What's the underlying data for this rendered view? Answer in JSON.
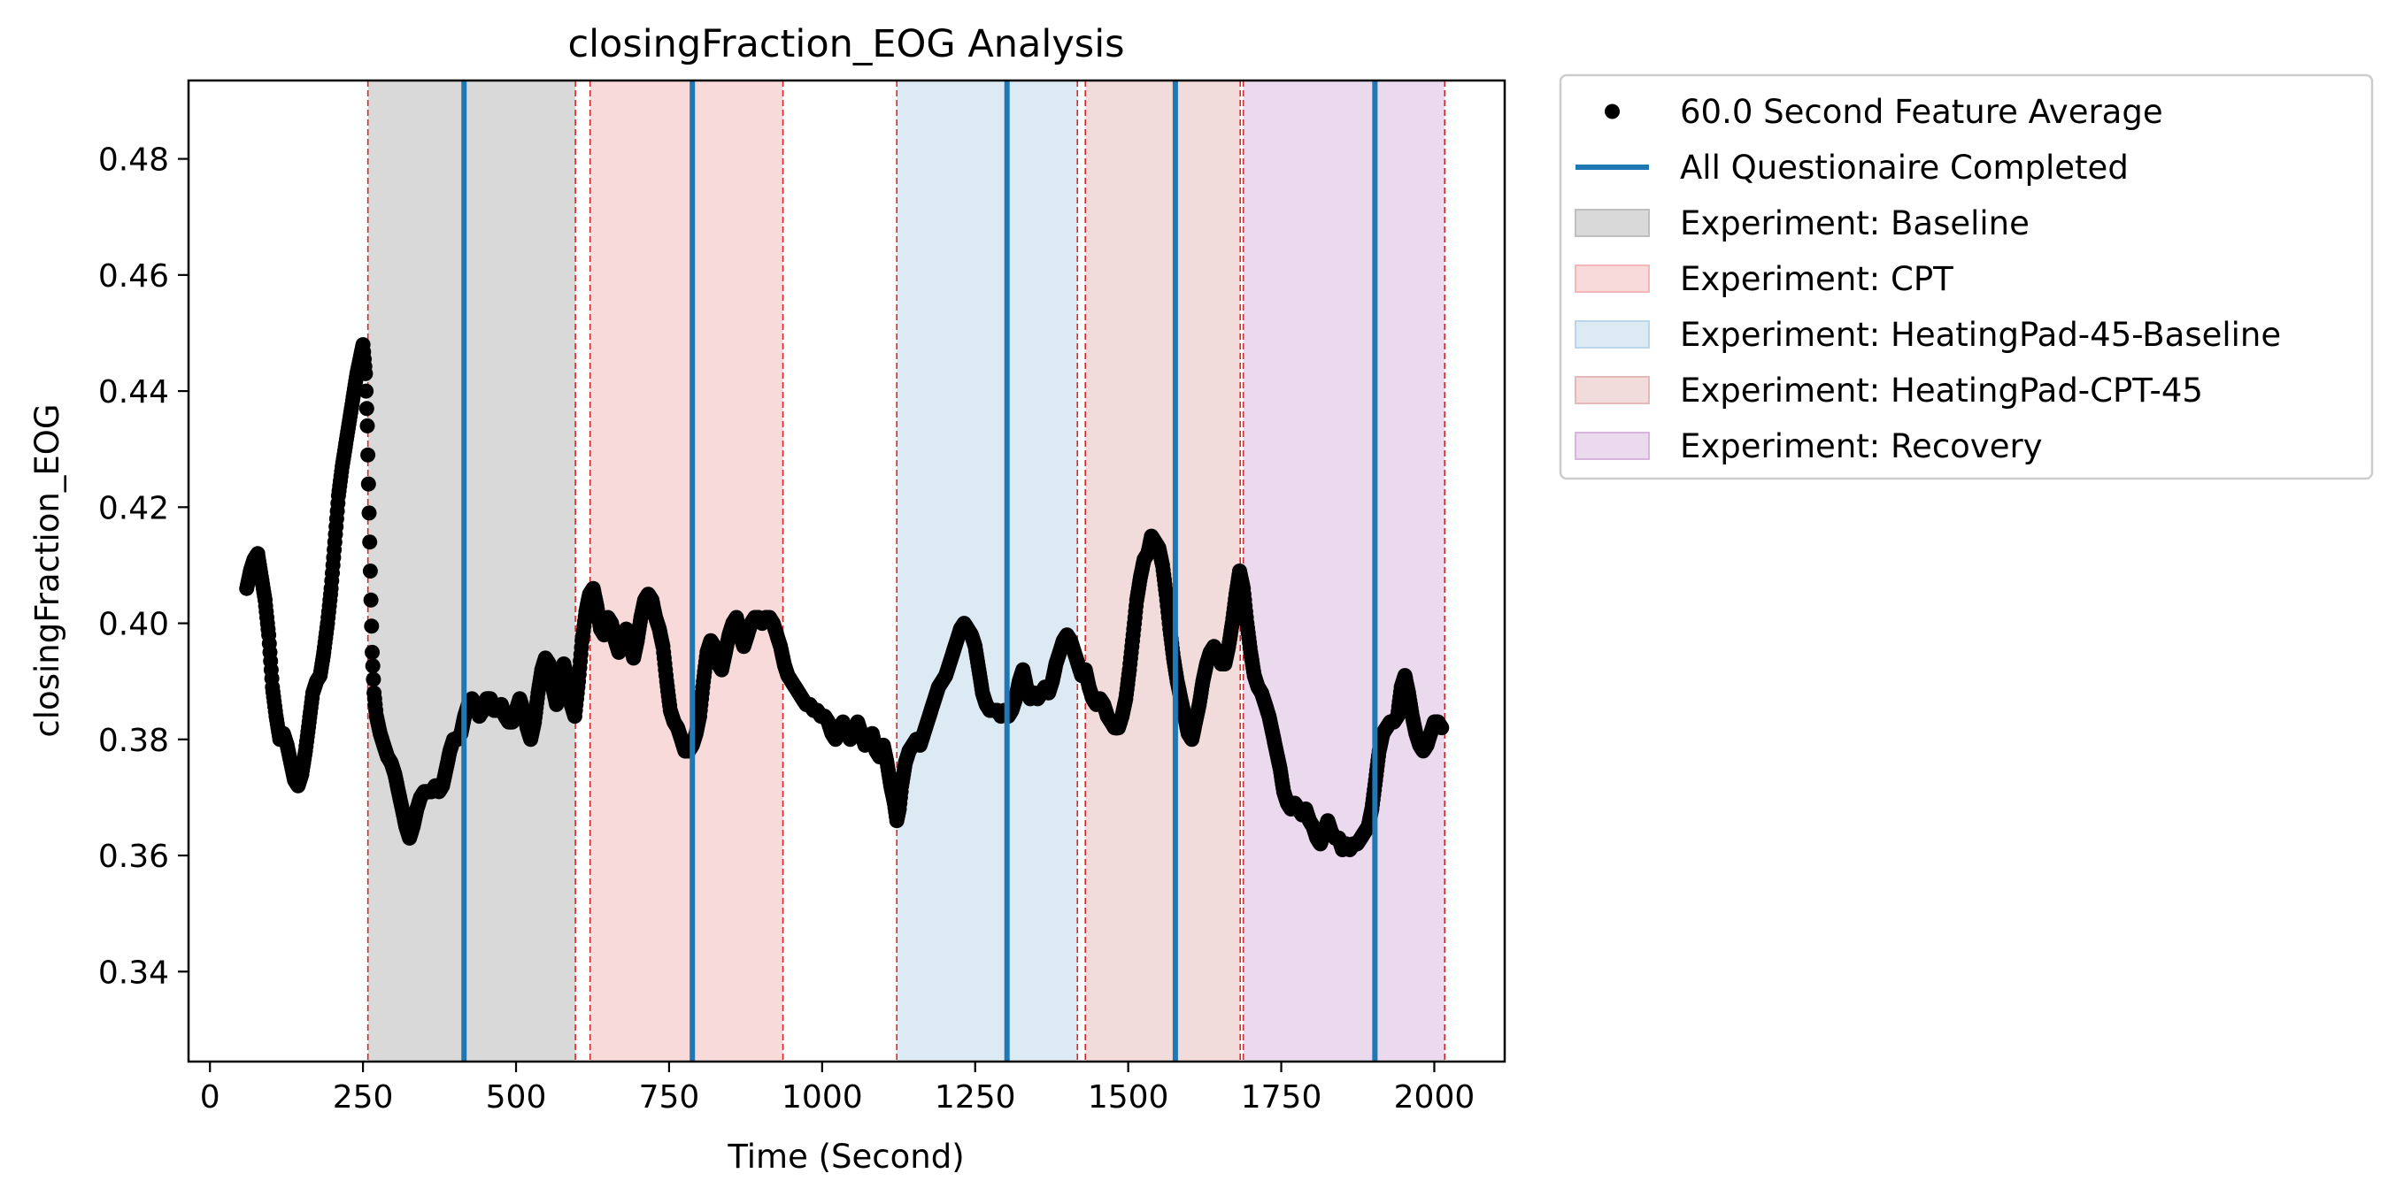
{
  "chart_data": {
    "type": "scatter",
    "title": "closingFraction_EOG Analysis",
    "xlabel": "Time (Second)",
    "ylabel": "closingFraction_EOG",
    "xlim": [
      -35,
      2115
    ],
    "ylim": [
      0.3245,
      0.4935
    ],
    "xticks": [
      0,
      250,
      500,
      750,
      1000,
      1250,
      1500,
      1750,
      2000
    ],
    "xtick_labels": [
      "0",
      "250",
      "500",
      "750",
      "1000",
      "1250",
      "1500",
      "1750",
      "2000"
    ],
    "yticks": [
      0.34,
      0.36,
      0.38,
      0.4,
      0.42,
      0.44,
      0.46,
      0.48
    ],
    "ytick_labels": [
      "0.34",
      "0.36",
      "0.38",
      "0.40",
      "0.42",
      "0.44",
      "0.46",
      "0.48"
    ],
    "grid": false,
    "legend_position": "outside-top-right",
    "series_name": "60.0 Second Feature Average",
    "series_color": "#000000",
    "series_keypoints": [
      [
        60,
        0.406
      ],
      [
        66,
        0.409
      ],
      [
        72,
        0.411
      ],
      [
        78,
        0.412
      ],
      [
        84,
        0.408
      ],
      [
        90,
        0.404
      ],
      [
        96,
        0.398
      ],
      [
        102,
        0.389
      ],
      [
        108,
        0.384
      ],
      [
        114,
        0.38
      ],
      [
        120,
        0.381
      ],
      [
        126,
        0.379
      ],
      [
        132,
        0.376
      ],
      [
        138,
        0.373
      ],
      [
        144,
        0.372
      ],
      [
        150,
        0.374
      ],
      [
        156,
        0.378
      ],
      [
        162,
        0.383
      ],
      [
        168,
        0.388
      ],
      [
        174,
        0.39
      ],
      [
        180,
        0.391
      ],
      [
        186,
        0.395
      ],
      [
        192,
        0.4
      ],
      [
        198,
        0.406
      ],
      [
        204,
        0.414
      ],
      [
        210,
        0.422
      ],
      [
        216,
        0.427
      ],
      [
        222,
        0.431
      ],
      [
        228,
        0.435
      ],
      [
        234,
        0.439
      ],
      [
        240,
        0.443
      ],
      [
        246,
        0.446
      ],
      [
        250,
        0.448
      ],
      [
        254,
        0.443
      ],
      [
        257,
        0.434
      ],
      [
        259,
        0.424
      ],
      [
        261,
        0.414
      ],
      [
        263,
        0.404
      ],
      [
        265,
        0.395
      ],
      [
        268,
        0.388
      ],
      [
        272,
        0.384
      ],
      [
        278,
        0.381
      ],
      [
        284,
        0.379
      ],
      [
        290,
        0.377
      ],
      [
        296,
        0.376
      ],
      [
        302,
        0.374
      ],
      [
        308,
        0.371
      ],
      [
        314,
        0.368
      ],
      [
        320,
        0.365
      ],
      [
        326,
        0.363
      ],
      [
        332,
        0.365
      ],
      [
        338,
        0.368
      ],
      [
        344,
        0.37
      ],
      [
        350,
        0.371
      ],
      [
        356,
        0.371
      ],
      [
        362,
        0.371
      ],
      [
        368,
        0.372
      ],
      [
        374,
        0.371
      ],
      [
        380,
        0.372
      ],
      [
        386,
        0.375
      ],
      [
        392,
        0.378
      ],
      [
        398,
        0.38
      ],
      [
        404,
        0.38
      ],
      [
        410,
        0.381
      ],
      [
        416,
        0.384
      ],
      [
        422,
        0.386
      ],
      [
        428,
        0.387
      ],
      [
        434,
        0.386
      ],
      [
        440,
        0.384
      ],
      [
        446,
        0.385
      ],
      [
        452,
        0.387
      ],
      [
        458,
        0.387
      ],
      [
        464,
        0.385
      ],
      [
        470,
        0.385
      ],
      [
        476,
        0.386
      ],
      [
        482,
        0.384
      ],
      [
        488,
        0.383
      ],
      [
        494,
        0.383
      ],
      [
        500,
        0.385
      ],
      [
        506,
        0.387
      ],
      [
        512,
        0.385
      ],
      [
        518,
        0.382
      ],
      [
        524,
        0.38
      ],
      [
        530,
        0.383
      ],
      [
        536,
        0.388
      ],
      [
        542,
        0.392
      ],
      [
        548,
        0.394
      ],
      [
        554,
        0.393
      ],
      [
        560,
        0.389
      ],
      [
        566,
        0.386
      ],
      [
        572,
        0.39
      ],
      [
        578,
        0.393
      ],
      [
        584,
        0.39
      ],
      [
        590,
        0.386
      ],
      [
        596,
        0.384
      ],
      [
        602,
        0.39
      ],
      [
        608,
        0.397
      ],
      [
        614,
        0.402
      ],
      [
        620,
        0.405
      ],
      [
        626,
        0.406
      ],
      [
        632,
        0.403
      ],
      [
        638,
        0.399
      ],
      [
        644,
        0.398
      ],
      [
        650,
        0.401
      ],
      [
        656,
        0.4
      ],
      [
        662,
        0.397
      ],
      [
        668,
        0.395
      ],
      [
        674,
        0.396
      ],
      [
        680,
        0.399
      ],
      [
        686,
        0.397
      ],
      [
        692,
        0.394
      ],
      [
        698,
        0.397
      ],
      [
        704,
        0.401
      ],
      [
        710,
        0.404
      ],
      [
        716,
        0.405
      ],
      [
        722,
        0.404
      ],
      [
        728,
        0.401
      ],
      [
        734,
        0.399
      ],
      [
        740,
        0.396
      ],
      [
        746,
        0.39
      ],
      [
        752,
        0.385
      ],
      [
        758,
        0.383
      ],
      [
        764,
        0.382
      ],
      [
        770,
        0.38
      ],
      [
        776,
        0.378
      ],
      [
        782,
        0.378
      ],
      [
        788,
        0.379
      ],
      [
        794,
        0.381
      ],
      [
        800,
        0.384
      ],
      [
        806,
        0.39
      ],
      [
        812,
        0.395
      ],
      [
        818,
        0.397
      ],
      [
        824,
        0.396
      ],
      [
        830,
        0.393
      ],
      [
        836,
        0.392
      ],
      [
        842,
        0.395
      ],
      [
        848,
        0.398
      ],
      [
        854,
        0.4
      ],
      [
        860,
        0.401
      ],
      [
        866,
        0.398
      ],
      [
        872,
        0.396
      ],
      [
        878,
        0.398
      ],
      [
        884,
        0.4
      ],
      [
        890,
        0.401
      ],
      [
        896,
        0.401
      ],
      [
        902,
        0.4
      ],
      [
        908,
        0.401
      ],
      [
        914,
        0.401
      ],
      [
        920,
        0.4
      ],
      [
        926,
        0.398
      ],
      [
        932,
        0.396
      ],
      [
        938,
        0.393
      ],
      [
        944,
        0.391
      ],
      [
        950,
        0.39
      ],
      [
        956,
        0.389
      ],
      [
        962,
        0.388
      ],
      [
        968,
        0.387
      ],
      [
        974,
        0.386
      ],
      [
        980,
        0.386
      ],
      [
        986,
        0.385
      ],
      [
        992,
        0.385
      ],
      [
        998,
        0.384
      ],
      [
        1004,
        0.384
      ],
      [
        1010,
        0.383
      ],
      [
        1016,
        0.381
      ],
      [
        1022,
        0.38
      ],
      [
        1028,
        0.382
      ],
      [
        1034,
        0.383
      ],
      [
        1040,
        0.381
      ],
      [
        1046,
        0.38
      ],
      [
        1052,
        0.381
      ],
      [
        1058,
        0.383
      ],
      [
        1064,
        0.381
      ],
      [
        1070,
        0.379
      ],
      [
        1076,
        0.38
      ],
      [
        1082,
        0.381
      ],
      [
        1088,
        0.378
      ],
      [
        1094,
        0.377
      ],
      [
        1100,
        0.379
      ],
      [
        1106,
        0.376
      ],
      [
        1112,
        0.372
      ],
      [
        1118,
        0.369
      ],
      [
        1122,
        0.366
      ],
      [
        1126,
        0.368
      ],
      [
        1130,
        0.372
      ],
      [
        1136,
        0.376
      ],
      [
        1142,
        0.378
      ],
      [
        1148,
        0.379
      ],
      [
        1154,
        0.38
      ],
      [
        1160,
        0.379
      ],
      [
        1166,
        0.381
      ],
      [
        1172,
        0.383
      ],
      [
        1178,
        0.385
      ],
      [
        1184,
        0.387
      ],
      [
        1190,
        0.389
      ],
      [
        1196,
        0.39
      ],
      [
        1202,
        0.391
      ],
      [
        1208,
        0.393
      ],
      [
        1214,
        0.395
      ],
      [
        1220,
        0.397
      ],
      [
        1226,
        0.399
      ],
      [
        1232,
        0.4
      ],
      [
        1238,
        0.399
      ],
      [
        1244,
        0.398
      ],
      [
        1250,
        0.396
      ],
      [
        1256,
        0.392
      ],
      [
        1262,
        0.388
      ],
      [
        1268,
        0.386
      ],
      [
        1274,
        0.385
      ],
      [
        1280,
        0.385
      ],
      [
        1286,
        0.385
      ],
      [
        1292,
        0.384
      ],
      [
        1298,
        0.385
      ],
      [
        1304,
        0.384
      ],
      [
        1310,
        0.385
      ],
      [
        1316,
        0.387
      ],
      [
        1322,
        0.39
      ],
      [
        1328,
        0.392
      ],
      [
        1334,
        0.389
      ],
      [
        1340,
        0.387
      ],
      [
        1346,
        0.388
      ],
      [
        1352,
        0.387
      ],
      [
        1358,
        0.388
      ],
      [
        1364,
        0.389
      ],
      [
        1370,
        0.388
      ],
      [
        1376,
        0.39
      ],
      [
        1382,
        0.393
      ],
      [
        1388,
        0.395
      ],
      [
        1394,
        0.397
      ],
      [
        1400,
        0.398
      ],
      [
        1406,
        0.397
      ],
      [
        1412,
        0.395
      ],
      [
        1418,
        0.393
      ],
      [
        1424,
        0.391
      ],
      [
        1430,
        0.392
      ],
      [
        1436,
        0.389
      ],
      [
        1442,
        0.387
      ],
      [
        1448,
        0.386
      ],
      [
        1454,
        0.387
      ],
      [
        1460,
        0.386
      ],
      [
        1466,
        0.384
      ],
      [
        1472,
        0.383
      ],
      [
        1478,
        0.382
      ],
      [
        1484,
        0.382
      ],
      [
        1490,
        0.384
      ],
      [
        1496,
        0.387
      ],
      [
        1502,
        0.392
      ],
      [
        1508,
        0.398
      ],
      [
        1514,
        0.404
      ],
      [
        1520,
        0.408
      ],
      [
        1526,
        0.411
      ],
      [
        1532,
        0.412
      ],
      [
        1538,
        0.415
      ],
      [
        1544,
        0.414
      ],
      [
        1550,
        0.413
      ],
      [
        1556,
        0.41
      ],
      [
        1562,
        0.405
      ],
      [
        1568,
        0.399
      ],
      [
        1574,
        0.394
      ],
      [
        1580,
        0.39
      ],
      [
        1586,
        0.387
      ],
      [
        1592,
        0.384
      ],
      [
        1598,
        0.381
      ],
      [
        1604,
        0.38
      ],
      [
        1610,
        0.383
      ],
      [
        1616,
        0.386
      ],
      [
        1622,
        0.39
      ],
      [
        1628,
        0.393
      ],
      [
        1634,
        0.395
      ],
      [
        1640,
        0.396
      ],
      [
        1646,
        0.395
      ],
      [
        1652,
        0.393
      ],
      [
        1658,
        0.393
      ],
      [
        1664,
        0.396
      ],
      [
        1670,
        0.4
      ],
      [
        1676,
        0.405
      ],
      [
        1682,
        0.409
      ],
      [
        1688,
        0.406
      ],
      [
        1694,
        0.4
      ],
      [
        1700,
        0.395
      ],
      [
        1706,
        0.391
      ],
      [
        1712,
        0.389
      ],
      [
        1718,
        0.388
      ],
      [
        1724,
        0.386
      ],
      [
        1730,
        0.384
      ],
      [
        1736,
        0.381
      ],
      [
        1742,
        0.378
      ],
      [
        1748,
        0.375
      ],
      [
        1754,
        0.371
      ],
      [
        1760,
        0.369
      ],
      [
        1766,
        0.368
      ],
      [
        1772,
        0.369
      ],
      [
        1778,
        0.368
      ],
      [
        1784,
        0.367
      ],
      [
        1790,
        0.368
      ],
      [
        1796,
        0.366
      ],
      [
        1802,
        0.365
      ],
      [
        1808,
        0.363
      ],
      [
        1814,
        0.362
      ],
      [
        1820,
        0.364
      ],
      [
        1826,
        0.366
      ],
      [
        1832,
        0.364
      ],
      [
        1838,
        0.363
      ],
      [
        1844,
        0.363
      ],
      [
        1850,
        0.361
      ],
      [
        1856,
        0.362
      ],
      [
        1862,
        0.361
      ],
      [
        1868,
        0.362
      ],
      [
        1874,
        0.362
      ],
      [
        1880,
        0.363
      ],
      [
        1886,
        0.364
      ],
      [
        1892,
        0.365
      ],
      [
        1898,
        0.368
      ],
      [
        1904,
        0.373
      ],
      [
        1910,
        0.378
      ],
      [
        1916,
        0.381
      ],
      [
        1922,
        0.382
      ],
      [
        1928,
        0.383
      ],
      [
        1934,
        0.383
      ],
      [
        1940,
        0.384
      ],
      [
        1946,
        0.389
      ],
      [
        1952,
        0.391
      ],
      [
        1958,
        0.388
      ],
      [
        1964,
        0.384
      ],
      [
        1970,
        0.381
      ],
      [
        1976,
        0.379
      ],
      [
        1982,
        0.378
      ],
      [
        1988,
        0.379
      ],
      [
        1994,
        0.381
      ],
      [
        2000,
        0.383
      ],
      [
        2006,
        0.383
      ],
      [
        2012,
        0.382
      ]
    ],
    "regions": [
      {
        "name": "Experiment: Baseline",
        "start": 258,
        "end": 597,
        "color": "#bfbfbf",
        "opacity": 0.6
      },
      {
        "name": "Experiment: CPT",
        "start": 621,
        "end": 936,
        "color": "#f4b6b8",
        "opacity": 0.5
      },
      {
        "name": "Experiment: HeatingPad-45-Baseline",
        "start": 1122,
        "end": 1417,
        "color": "#b9d6ea",
        "opacity": 0.5
      },
      {
        "name": "Experiment: HeatingPad-CPT-45",
        "start": 1430,
        "end": 1683,
        "color": "#e3bab8",
        "opacity": 0.5
      },
      {
        "name": "Experiment: Recovery",
        "start": 1688,
        "end": 2017,
        "color": "#d8b6dc",
        "opacity": 0.5
      }
    ],
    "boundary_lines": [
      258,
      597,
      621,
      936,
      1122,
      1417,
      1430,
      1683,
      1688,
      2017
    ],
    "boundary_color": "#d62728",
    "questionnaire_lines": [
      415,
      788,
      1302,
      1577,
      1903
    ],
    "questionnaire_color": "#1f77b4",
    "questionnaire_name": "All Questionaire Completed"
  }
}
